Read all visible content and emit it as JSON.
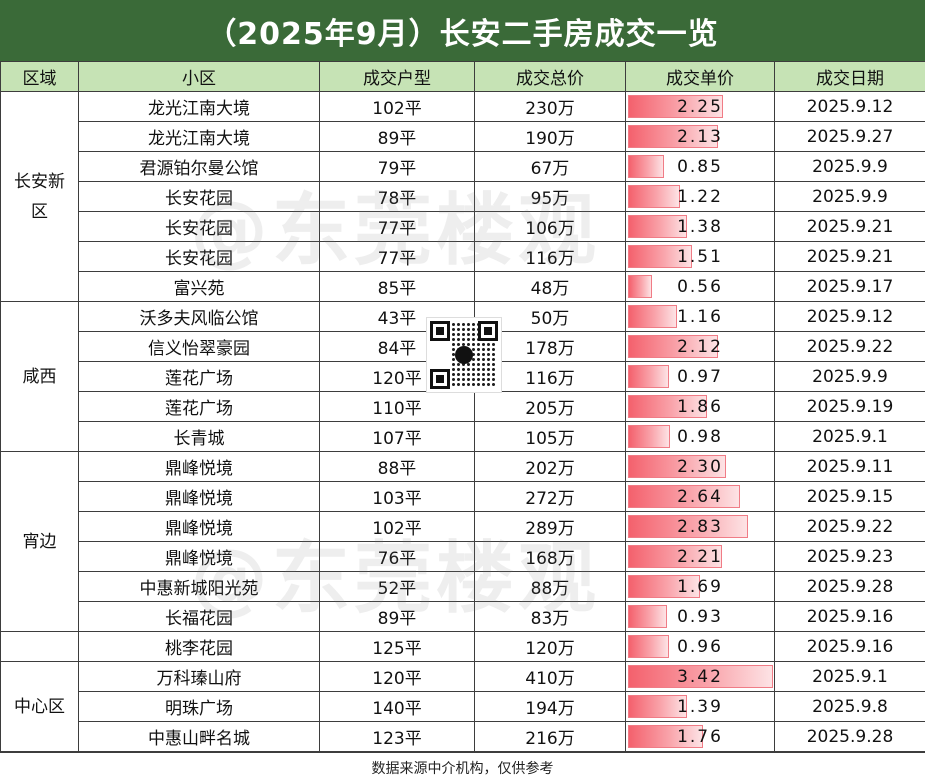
{
  "title": "（2025年9月）长安二手房成交一览",
  "headers": {
    "region": "区域",
    "community": "小区",
    "unit_type": "成交户型",
    "total_price": "成交总价",
    "unit_price": "成交单价",
    "date": "成交日期"
  },
  "regions": [
    {
      "name": "长安新区",
      "rows": 7
    },
    {
      "name": "咸西",
      "rows": 5
    },
    {
      "name": "宵边",
      "rows": 6
    },
    {
      "name": "",
      "rows": 1
    },
    {
      "name": "中心区",
      "rows": 3
    }
  ],
  "unit_price_max": 3.42,
  "rows": [
    {
      "community": "龙光江南大境",
      "unit_type": "102平",
      "total": "230万",
      "unit_price": "2.25",
      "date": "2025.9.12"
    },
    {
      "community": "龙光江南大境",
      "unit_type": "89平",
      "total": "190万",
      "unit_price": "2.13",
      "date": "2025.9.27"
    },
    {
      "community": "君源铂尔曼公馆",
      "unit_type": "79平",
      "total": "67万",
      "unit_price": "0.85",
      "date": "2025.9.9"
    },
    {
      "community": "长安花园",
      "unit_type": "78平",
      "total": "95万",
      "unit_price": "1.22",
      "date": "2025.9.9"
    },
    {
      "community": "长安花园",
      "unit_type": "77平",
      "total": "106万",
      "unit_price": "1.38",
      "date": "2025.9.21"
    },
    {
      "community": "长安花园",
      "unit_type": "77平",
      "total": "116万",
      "unit_price": "1.51",
      "date": "2025.9.21"
    },
    {
      "community": "富兴苑",
      "unit_type": "85平",
      "total": "48万",
      "unit_price": "0.56",
      "date": "2025.9.17"
    },
    {
      "community": "沃多夫风临公馆",
      "unit_type": "43平",
      "total": "50万",
      "unit_price": "1.16",
      "date": "2025.9.12"
    },
    {
      "community": "信义怡翠豪园",
      "unit_type": "84平",
      "total": "178万",
      "unit_price": "2.12",
      "date": "2025.9.22"
    },
    {
      "community": "莲花广场",
      "unit_type": "120平",
      "total": "116万",
      "unit_price": "0.97",
      "date": "2025.9.9"
    },
    {
      "community": "莲花广场",
      "unit_type": "110平",
      "total": "205万",
      "unit_price": "1.86",
      "date": "2025.9.19"
    },
    {
      "community": "长青城",
      "unit_type": "107平",
      "total": "105万",
      "unit_price": "0.98",
      "date": "2025.9.1"
    },
    {
      "community": "鼎峰悦境",
      "unit_type": "88平",
      "total": "202万",
      "unit_price": "2.30",
      "date": "2025.9.11"
    },
    {
      "community": "鼎峰悦境",
      "unit_type": "103平",
      "total": "272万",
      "unit_price": "2.64",
      "date": "2025.9.15"
    },
    {
      "community": "鼎峰悦境",
      "unit_type": "102平",
      "total": "289万",
      "unit_price": "2.83",
      "date": "2025.9.22"
    },
    {
      "community": "鼎峰悦境",
      "unit_type": "76平",
      "total": "168万",
      "unit_price": "2.21",
      "date": "2025.9.23"
    },
    {
      "community": "中惠新城阳光苑",
      "unit_type": "52平",
      "total": "88万",
      "unit_price": "1.69",
      "date": "2025.9.28"
    },
    {
      "community": "长福花园",
      "unit_type": "89平",
      "total": "83万",
      "unit_price": "0.93",
      "date": "2025.9.16"
    },
    {
      "community": "桃李花园",
      "unit_type": "125平",
      "total": "120万",
      "unit_price": "0.96",
      "date": "2025.9.16"
    },
    {
      "community": "万科瑧山府",
      "unit_type": "120平",
      "total": "410万",
      "unit_price": "3.42",
      "date": "2025.9.1"
    },
    {
      "community": "明珠广场",
      "unit_type": "140平",
      "total": "194万",
      "unit_price": "1.39",
      "date": "2025.9.8"
    },
    {
      "community": "中惠山畔名城",
      "unit_type": "123平",
      "total": "216万",
      "unit_price": "1.76",
      "date": "2025.9.28"
    }
  ],
  "watermark": "@东莞楼观",
  "footer": "数据来源中介机构，仅供参考",
  "colors": {
    "title_bg": "#3a6a38",
    "header_bg": "#c6e3b5",
    "bar": "#f4616d"
  },
  "icons": {
    "qr": "wechat-qr-code-icon"
  }
}
